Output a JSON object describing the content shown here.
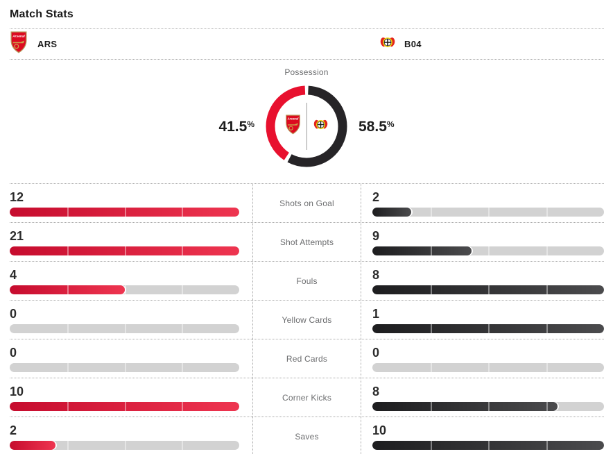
{
  "title": "Match Stats",
  "teams": {
    "home": {
      "abbr": "ARS",
      "name": "Arsenal"
    },
    "away": {
      "abbr": "B04",
      "name": "Bayer Leverkusen"
    }
  },
  "possession": {
    "label": "Possession",
    "home_display": "41.5",
    "away_display": "58.5",
    "unit": "%"
  },
  "colors": {
    "home_bar_start": "#c60c2e",
    "home_bar_end": "#ee3550",
    "away_bar_start": "#1d1d1f",
    "away_bar_end": "#4b4b4d",
    "track": "#d2d2d2",
    "donut_home": "#e8102e",
    "donut_away": "#262427"
  },
  "chart_data": [
    {
      "type": "pie",
      "title": "Possession",
      "labels": [
        "ARS",
        "B04"
      ],
      "values": [
        41.5,
        58.5
      ],
      "colors": [
        "#e8102e",
        "#262427"
      ],
      "style": "donut, red segment left from top counterclockwise, dark segment right, small white gaps at junctions, team crests and vertical divider in center"
    },
    {
      "type": "bar",
      "title": "Match Stats",
      "orientation": "horizontal, mirrored pair per category, each bar scaled to max of the pair, 4 segments per track",
      "categories": [
        "Shots on Goal",
        "Shot Attempts",
        "Fouls",
        "Yellow Cards",
        "Red Cards",
        "Corner Kicks",
        "Saves"
      ],
      "series": [
        {
          "name": "ARS",
          "values": [
            12,
            21,
            4,
            0,
            0,
            10,
            2
          ]
        },
        {
          "name": "B04",
          "values": [
            2,
            9,
            8,
            1,
            0,
            8,
            10
          ]
        }
      ]
    }
  ]
}
